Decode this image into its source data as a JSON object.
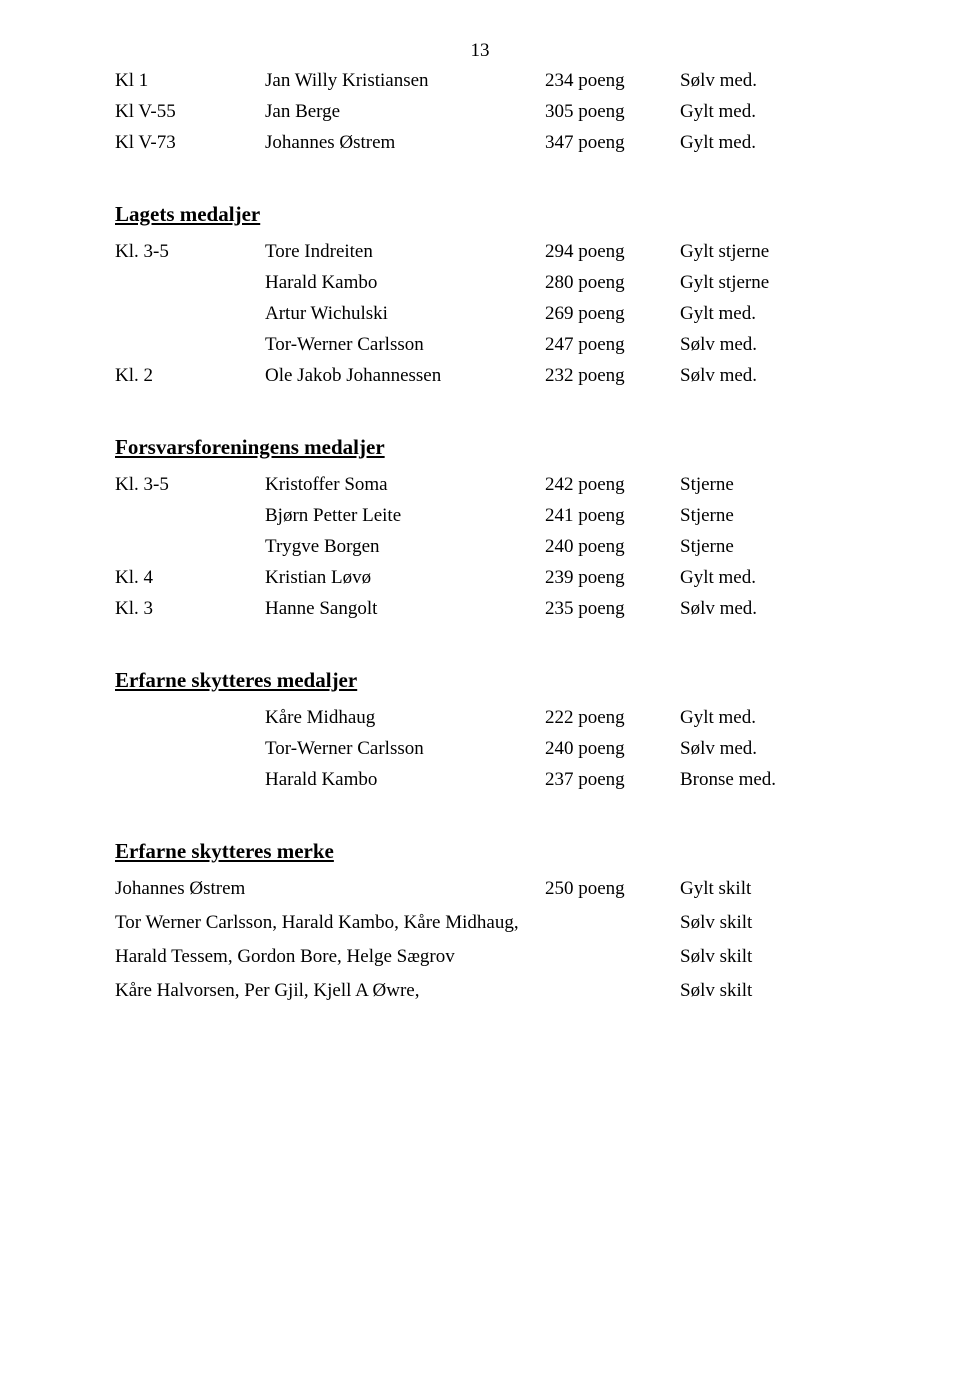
{
  "page_number": "13",
  "top_rows": [
    {
      "klass": "Kl 1",
      "name": "Jan Willy Kristiansen",
      "points": "234 poeng",
      "medal": "Sølv med."
    },
    {
      "klass": "Kl V-55",
      "name": "Jan Berge",
      "points": "305 poeng",
      "medal": "Gylt med."
    },
    {
      "klass": "Kl V-73",
      "name": "Johannes Østrem",
      "points": "347 poeng",
      "medal": "Gylt med."
    }
  ],
  "sections": {
    "lagets": {
      "heading": "Lagets medaljer",
      "rows": [
        {
          "klass": "Kl. 3-5",
          "name": "Tore Indreiten",
          "points": "294 poeng",
          "medal": "Gylt stjerne"
        },
        {
          "klass": "",
          "name": "Harald Kambo",
          "points": "280 poeng",
          "medal": "Gylt stjerne"
        },
        {
          "klass": "",
          "name": "Artur Wichulski",
          "points": "269 poeng",
          "medal": "Gylt med."
        },
        {
          "klass": "",
          "name": "Tor-Werner Carlsson",
          "points": "247 poeng",
          "medal": "Sølv med."
        },
        {
          "klass": "Kl. 2",
          "name": "Ole Jakob Johannessen",
          "points": "232 poeng",
          "medal": "Sølv med."
        }
      ]
    },
    "forsvars": {
      "heading": "Forsvarsforeningens medaljer",
      "rows": [
        {
          "klass": "Kl. 3-5",
          "name": "Kristoffer Soma",
          "points": "242 poeng",
          "medal": "Stjerne"
        },
        {
          "klass": "",
          "name": "Bjørn Petter Leite",
          "points": "241 poeng",
          "medal": "Stjerne"
        },
        {
          "klass": "",
          "name": "Trygve Borgen",
          "points": "240 poeng",
          "medal": "Stjerne"
        },
        {
          "klass": "Kl. 4",
          "name": "Kristian Løvø",
          "points": "239 poeng",
          "medal": "Gylt med."
        },
        {
          "klass": "Kl. 3",
          "name": "Hanne Sangolt",
          "points": "235 poeng",
          "medal": "Sølv med."
        }
      ]
    },
    "erfarne_medaljer": {
      "heading": "Erfarne skytteres medaljer",
      "rows": [
        {
          "klass": "",
          "name": "Kåre Midhaug",
          "points": "222 poeng",
          "medal": "Gylt med."
        },
        {
          "klass": "",
          "name": "Tor-Werner Carlsson",
          "points": "240 poeng",
          "medal": "Sølv med."
        },
        {
          "klass": "",
          "name": "Harald Kambo",
          "points": "237 poeng",
          "medal": "Bronse med."
        }
      ]
    },
    "erfarne_merke": {
      "heading": "Erfarne skytteres merke",
      "rows": [
        {
          "left": "Johannes Østrem",
          "points": "250 poeng",
          "medal": "Gylt skilt"
        },
        {
          "left": "Tor Werner Carlsson, Harald Kambo, Kåre Midhaug,",
          "points": "",
          "medal": "Sølv skilt"
        },
        {
          "left": "Harald Tessem, Gordon Bore, Helge Sægrov",
          "points": "",
          "medal": "Sølv skilt"
        },
        {
          "left": "Kåre Halvorsen, Per Gjil, Kjell A Øwre,",
          "points": "",
          "medal": "Sølv skilt"
        }
      ]
    }
  }
}
